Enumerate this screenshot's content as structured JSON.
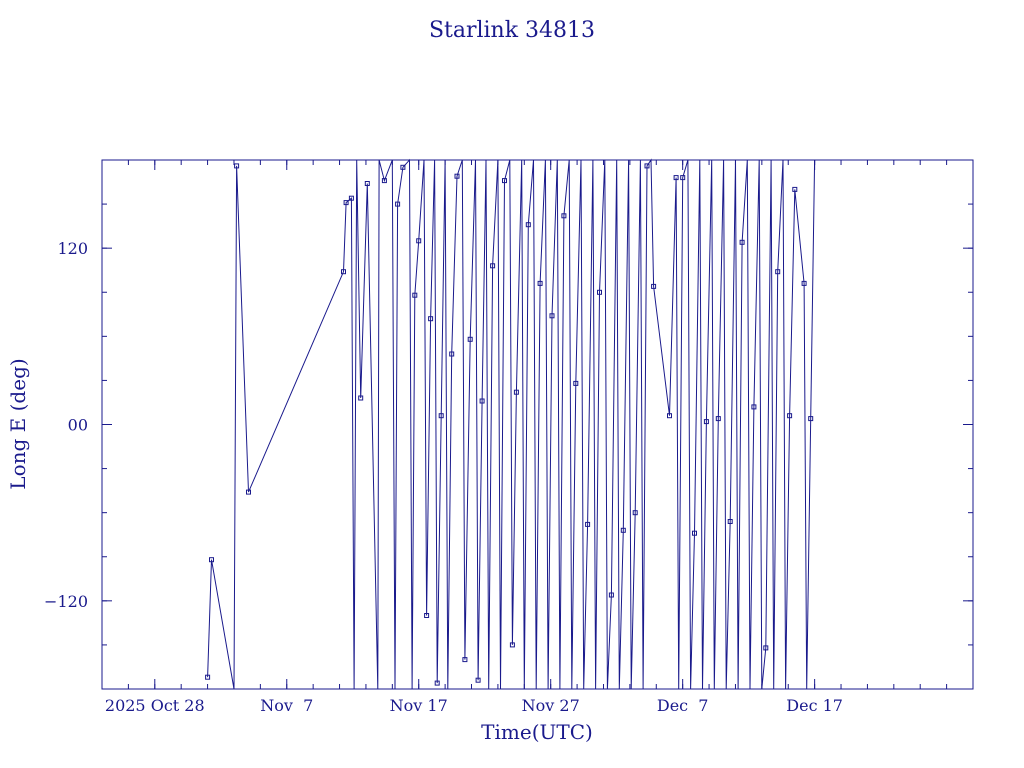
{
  "chart_data": {
    "type": "line",
    "title": "Starlink 34813",
    "xlabel": "Time(UTC)",
    "ylabel": "Long E (deg)",
    "x_unit": "days since 2025-10-24 00:00 UTC (axis shows calendar dates)",
    "xlim": [
      0,
      66
    ],
    "ylim": [
      -180,
      180
    ],
    "x_ticks": [
      {
        "x": 4,
        "label": "2025 Oct 28"
      },
      {
        "x": 14,
        "label": "Nov  7"
      },
      {
        "x": 24,
        "label": "Nov 17"
      },
      {
        "x": 34,
        "label": "Nov 27"
      },
      {
        "x": 44,
        "label": "Dec  7"
      },
      {
        "x": 54,
        "label": "Dec 17"
      }
    ],
    "y_ticks": [
      {
        "y": -120,
        "label": "−120"
      },
      {
        "y": 0,
        "label": "00"
      },
      {
        "y": 120,
        "label": "120"
      }
    ],
    "grid": false,
    "color": "#1a1a8c",
    "series": [
      {
        "name": "",
        "points": [
          [
            8.0,
            -172
          ],
          [
            8.3,
            -92
          ],
          [
            10.0,
            -183
          ],
          [
            10.2,
            176
          ],
          [
            11.1,
            -46
          ],
          [
            18.3,
            104
          ],
          [
            18.5,
            151
          ],
          [
            18.9,
            154
          ],
          [
            19.1,
            -183
          ],
          [
            19.3,
            183
          ],
          [
            19.6,
            18
          ],
          [
            20.1,
            164
          ],
          [
            20.9,
            -183
          ],
          [
            21.0,
            183
          ],
          [
            21.4,
            166
          ],
          [
            22.0,
            183
          ],
          [
            22.2,
            -183
          ],
          [
            22.4,
            150
          ],
          [
            22.8,
            175
          ],
          [
            23.3,
            183
          ],
          [
            23.5,
            -183
          ],
          [
            23.7,
            88
          ],
          [
            24.0,
            125
          ],
          [
            24.4,
            183
          ],
          [
            24.6,
            -130
          ],
          [
            24.9,
            72
          ],
          [
            25.2,
            183
          ],
          [
            25.4,
            -176
          ],
          [
            25.7,
            6
          ],
          [
            26.0,
            183
          ],
          [
            26.2,
            -183
          ],
          [
            26.5,
            48
          ],
          [
            26.9,
            169
          ],
          [
            27.3,
            183
          ],
          [
            27.5,
            -160
          ],
          [
            27.9,
            58
          ],
          [
            28.3,
            183
          ],
          [
            28.5,
            -174
          ],
          [
            28.8,
            16
          ],
          [
            29.1,
            183
          ],
          [
            29.3,
            -183
          ],
          [
            29.6,
            108
          ],
          [
            30.0,
            183
          ],
          [
            30.2,
            -183
          ],
          [
            30.5,
            166
          ],
          [
            30.9,
            183
          ],
          [
            31.1,
            -150
          ],
          [
            31.4,
            22
          ],
          [
            31.8,
            183
          ],
          [
            32.0,
            -183
          ],
          [
            32.3,
            136
          ],
          [
            32.7,
            183
          ],
          [
            32.9,
            -183
          ],
          [
            33.2,
            96
          ],
          [
            33.6,
            183
          ],
          [
            33.8,
            -183
          ],
          [
            34.1,
            74
          ],
          [
            34.5,
            183
          ],
          [
            34.7,
            -183
          ],
          [
            35.0,
            142
          ],
          [
            35.4,
            183
          ],
          [
            35.6,
            -183
          ],
          [
            35.9,
            28
          ],
          [
            36.3,
            183
          ],
          [
            36.5,
            -183
          ],
          [
            36.8,
            -68
          ],
          [
            37.2,
            183
          ],
          [
            37.4,
            -183
          ],
          [
            37.7,
            90
          ],
          [
            38.1,
            183
          ],
          [
            38.3,
            -183
          ],
          [
            38.6,
            -116
          ],
          [
            39.0,
            183
          ],
          [
            39.2,
            -183
          ],
          [
            39.5,
            -72
          ],
          [
            39.9,
            183
          ],
          [
            40.1,
            -183
          ],
          [
            40.4,
            -60
          ],
          [
            40.8,
            183
          ],
          [
            41.0,
            -183
          ],
          [
            41.3,
            176
          ],
          [
            41.6,
            183
          ],
          [
            41.8,
            94
          ],
          [
            43.0,
            6
          ],
          [
            43.5,
            168
          ],
          [
            43.7,
            -183
          ],
          [
            44.0,
            168
          ],
          [
            44.4,
            183
          ],
          [
            44.6,
            -183
          ],
          [
            44.9,
            -74
          ],
          [
            45.3,
            183
          ],
          [
            45.5,
            -183
          ],
          [
            45.8,
            2
          ],
          [
            46.2,
            183
          ],
          [
            46.4,
            -183
          ],
          [
            46.7,
            4
          ],
          [
            47.1,
            183
          ],
          [
            47.3,
            -183
          ],
          [
            47.6,
            -66
          ],
          [
            48.0,
            183
          ],
          [
            48.2,
            -183
          ],
          [
            48.5,
            124
          ],
          [
            48.9,
            183
          ],
          [
            49.1,
            -183
          ],
          [
            49.4,
            12
          ],
          [
            49.8,
            183
          ],
          [
            50.0,
            -183
          ],
          [
            50.3,
            -152
          ],
          [
            50.7,
            183
          ],
          [
            50.9,
            -183
          ],
          [
            51.2,
            104
          ],
          [
            51.6,
            183
          ],
          [
            51.8,
            -183
          ],
          [
            52.1,
            6
          ],
          [
            52.5,
            160
          ],
          [
            53.2,
            96
          ],
          [
            53.4,
            -183
          ],
          [
            53.7,
            4
          ],
          [
            54.0,
            183
          ]
        ]
      }
    ]
  }
}
